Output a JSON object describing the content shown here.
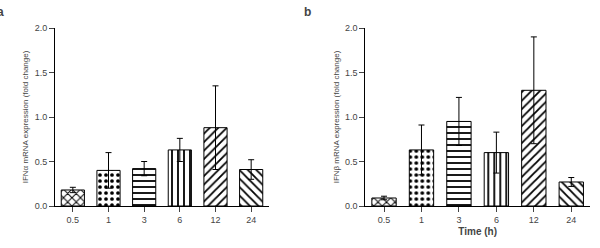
{
  "chart_data": [
    {
      "type": "bar",
      "title": "a",
      "ylabel": "IFNα mRNA expression (fold change)",
      "categories": [
        "0.5",
        "1",
        "3",
        "6",
        "12",
        "24"
      ],
      "values": [
        0.18,
        0.4,
        0.42,
        0.63,
        0.88,
        0.41
      ],
      "errors": [
        0.03,
        0.2,
        0.08,
        0.13,
        0.47,
        0.11
      ],
      "color": "white",
      "ylim": [
        0,
        2.0
      ],
      "yticks": [
        {
          "value": 0.0,
          "label": "0.0"
        },
        0.5,
        {
          "value": 1.0,
          "label": "1.0"
        },
        1.5,
        {
          "value": 2.0,
          "label": "2.0"
        }
      ],
      "grid": false
    },
    {
      "type": "bar",
      "title": "b",
      "ylabel": "IFNβ mRNA expression (fold change)",
      "xlabel": "Time (h)",
      "categories": [
        "0.5",
        "1",
        "3",
        "6",
        "12",
        "24"
      ],
      "values": [
        0.09,
        0.63,
        0.95,
        0.6,
        1.3,
        0.27
      ],
      "errors": [
        0.02,
        0.28,
        0.27,
        0.23,
        0.6,
        0.05
      ],
      "color": "white",
      "ylim": [
        0,
        2.0
      ],
      "yticks": [
        {
          "value": 0.0,
          "label": "0.0"
        },
        0.5,
        {
          "value": 1.0,
          "label": "1.0"
        },
        1.5,
        {
          "value": 2.0,
          "label": "2.0"
        }
      ],
      "grid": false
    }
  ]
}
